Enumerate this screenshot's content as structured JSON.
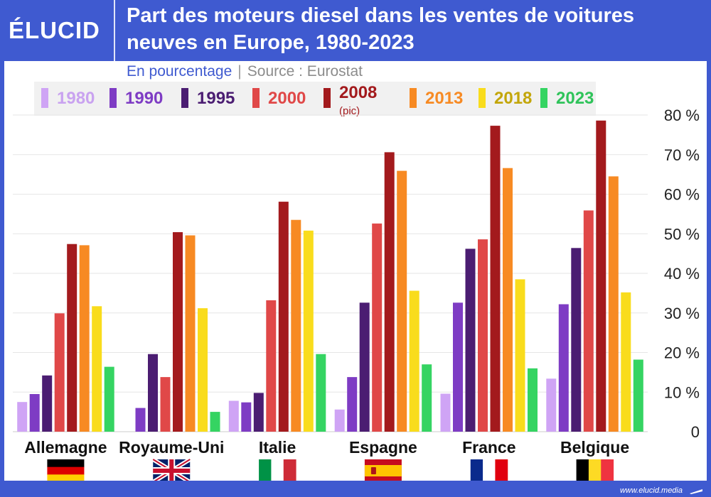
{
  "header": {
    "logo": "ÉLUCID",
    "title": "Part des moteurs diesel dans les ventes de voitures neuves en Europe, 1980-2023"
  },
  "subtitle": {
    "unit": "En pourcentage",
    "separator": "|",
    "source": "Source : Eurostat"
  },
  "footer": {
    "url": "www.elucid.media"
  },
  "colors": {
    "brand": "#3f5ad0",
    "series": [
      "#cfa4f5",
      "#7e3cc4",
      "#4b1d72",
      "#e04848",
      "#a31a1d",
      "#f78a23",
      "#f9dc1c",
      "#35d462"
    ],
    "legend_text": [
      "#c9a2f0",
      "#7e3cc4",
      "#4b1d72",
      "#e04848",
      "#a31a1d",
      "#f78a23",
      "#c3a60a",
      "#2fc35a"
    ]
  },
  "legend_note": "(pic)",
  "chart_data": {
    "type": "bar",
    "title": "Part des moteurs diesel dans les ventes de voitures neuves en Europe, 1980-2023",
    "ylabel": "En pourcentage",
    "ylim": [
      0,
      80
    ],
    "yticks": [
      0,
      10,
      20,
      30,
      40,
      50,
      60,
      70,
      80
    ],
    "ytick_labels": [
      "0",
      "10 %",
      "20 %",
      "30 %",
      "40 %",
      "50 %",
      "60 %",
      "70 %",
      "80 %"
    ],
    "grid": true,
    "legend_position": "top",
    "categories": [
      "Allemagne",
      "Royaume-Uni",
      "Italie",
      "Espagne",
      "France",
      "Belgique"
    ],
    "flags": [
      "de",
      "gb",
      "it",
      "es",
      "fr",
      "be"
    ],
    "series": [
      {
        "name": "1980",
        "values": [
          7.5,
          null,
          7.8,
          5.6,
          9.6,
          13.4
        ]
      },
      {
        "name": "1990",
        "values": [
          9.5,
          6,
          7.4,
          13.8,
          32.6,
          32.2
        ]
      },
      {
        "name": "1995",
        "values": [
          14.2,
          19.6,
          9.8,
          32.6,
          46.2,
          46.4
        ]
      },
      {
        "name": "2000",
        "values": [
          29.9,
          13.8,
          33.2,
          52.6,
          48.6,
          55.9
        ]
      },
      {
        "name": "2008",
        "values": [
          47.4,
          50.4,
          58.1,
          70.6,
          77.3,
          78.6
        ]
      },
      {
        "name": "2013",
        "values": [
          47.1,
          49.6,
          53.5,
          65.9,
          66.6,
          64.5
        ]
      },
      {
        "name": "2018",
        "values": [
          31.7,
          31.2,
          50.8,
          35.6,
          38.5,
          35.2
        ]
      },
      {
        "name": "2023",
        "values": [
          16.4,
          5,
          19.6,
          17,
          16,
          18.2
        ]
      }
    ]
  }
}
